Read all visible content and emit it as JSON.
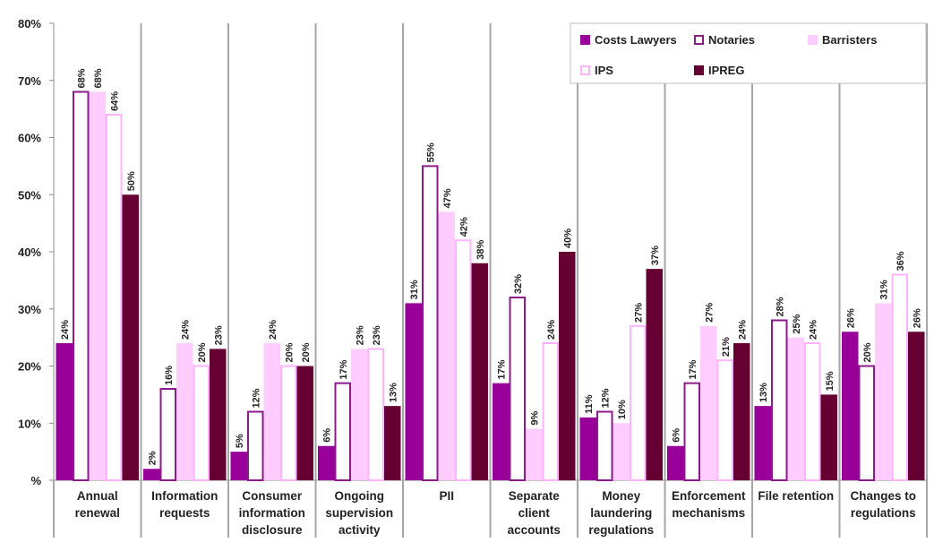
{
  "chart_data": {
    "type": "bar",
    "title": "",
    "xlabel": "",
    "ylabel": "",
    "ylim": [
      0,
      80
    ],
    "y_ticks": [
      "%",
      "10%",
      "20%",
      "30%",
      "40%",
      "50%",
      "60%",
      "70%",
      "80%"
    ],
    "grid": false,
    "legend_position": "top-right",
    "categories": [
      [
        "Annual",
        "renewal"
      ],
      [
        "Information",
        "requests"
      ],
      [
        "Consumer",
        "information",
        "disclosure"
      ],
      [
        "Ongoing",
        "supervision",
        "activity"
      ],
      [
        "PII"
      ],
      [
        "Separate",
        "client",
        "accounts"
      ],
      [
        "Money",
        "laundering",
        "regulations"
      ],
      [
        "Enforcement",
        "mechanisms"
      ],
      [
        "File retention"
      ],
      [
        "Changes to",
        "regulations"
      ]
    ],
    "series": [
      {
        "name": "Costs Lawyers",
        "fill": "#990099",
        "stroke": "#990099",
        "values": [
          24,
          2,
          5,
          6,
          31,
          17,
          11,
          6,
          13,
          26
        ],
        "labels": [
          "24%",
          "2%",
          "5%",
          "6%",
          "31%",
          "17%",
          "11%",
          "6%",
          "13%",
          "26%"
        ]
      },
      {
        "name": "Notaries",
        "fill": "#ffffff",
        "stroke": "#8b1a8b",
        "values": [
          68,
          16,
          12,
          17,
          55,
          32,
          12,
          17,
          28,
          20
        ],
        "labels": [
          "68%",
          "16%",
          "12%",
          "17%",
          "55%",
          "32%",
          "12%",
          "17%",
          "28%",
          "20%"
        ]
      },
      {
        "name": "Barristers",
        "fill": "#ffccff",
        "stroke": "#ffccff",
        "values": [
          68,
          24,
          24,
          23,
          47,
          9,
          10,
          27,
          25,
          31
        ],
        "labels": [
          "68%",
          "24%",
          "24%",
          "23%",
          "47%",
          "9%",
          "10%",
          "27%",
          "25%",
          "31%"
        ]
      },
      {
        "name": "IPS",
        "fill": "#ffffff",
        "stroke": "#ffb3ff",
        "values": [
          64,
          20,
          20,
          23,
          42,
          24,
          27,
          21,
          24,
          36
        ],
        "labels": [
          "64%",
          "20%",
          "20%",
          "23%",
          "42%",
          "24%",
          "27%",
          "21%",
          "24%",
          "36%"
        ]
      },
      {
        "name": "IPREG",
        "fill": "#660033",
        "stroke": "#660033",
        "values": [
          50,
          23,
          20,
          13,
          38,
          40,
          37,
          24,
          15,
          26
        ],
        "labels": [
          "50%",
          "23%",
          "20%",
          "13%",
          "38%",
          "40%",
          "37%",
          "24%",
          "15%",
          "26%"
        ]
      }
    ],
    "colors": {
      "axis": "#8c8c8c",
      "separator": "#a6a6a6",
      "legend_border": "#bfbfbf"
    }
  }
}
